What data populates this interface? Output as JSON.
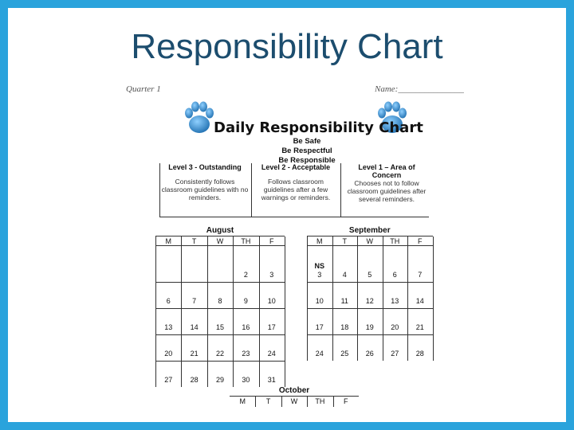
{
  "slide": {
    "title": "Responsibility Chart"
  },
  "header": {
    "quarter": "Quarter 1",
    "name_label": "Name:_______________"
  },
  "chart": {
    "heading": "Daily Responsibility Chart",
    "rules": [
      "Be Safe",
      "Be Respectful",
      "Be Responsible"
    ],
    "levels": [
      {
        "title": "Level 3 - Outstanding",
        "desc": "Consistently follows classroom guidelines with no reminders."
      },
      {
        "title": "Level 2 - Acceptable",
        "desc": "Follows classroom guidelines after a few warnings or reminders."
      },
      {
        "title": "Level 1 – Area of Concern",
        "desc": "Chooses not to follow classroom guidelines after several reminders."
      }
    ]
  },
  "calendars": {
    "august": {
      "name": "August",
      "days": [
        "M",
        "T",
        "W",
        "TH",
        "F"
      ],
      "weeks": [
        [
          "",
          "",
          "",
          "2",
          "3"
        ],
        [
          "6",
          "7",
          "8",
          "9",
          "10"
        ],
        [
          "13",
          "14",
          "15",
          "16",
          "17"
        ],
        [
          "20",
          "21",
          "22",
          "23",
          "24"
        ],
        [
          "27",
          "28",
          "29",
          "30",
          "31"
        ]
      ]
    },
    "september": {
      "name": "September",
      "days": [
        "M",
        "T",
        "W",
        "TH",
        "F"
      ],
      "ns_label": "NS",
      "weeks": [
        [
          "3",
          "4",
          "5",
          "6",
          "7"
        ],
        [
          "10",
          "11",
          "12",
          "13",
          "14"
        ],
        [
          "17",
          "18",
          "19",
          "20",
          "21"
        ],
        [
          "24",
          "25",
          "26",
          "27",
          "28"
        ]
      ]
    },
    "october": {
      "name": "October",
      "days": [
        "M",
        "T",
        "W",
        "TH",
        "F"
      ]
    }
  },
  "colors": {
    "frame": "#2aa3dc",
    "title": "#1c4d6e",
    "paw": "#1f7fc4"
  },
  "icons": [
    "paw-print-icon"
  ]
}
